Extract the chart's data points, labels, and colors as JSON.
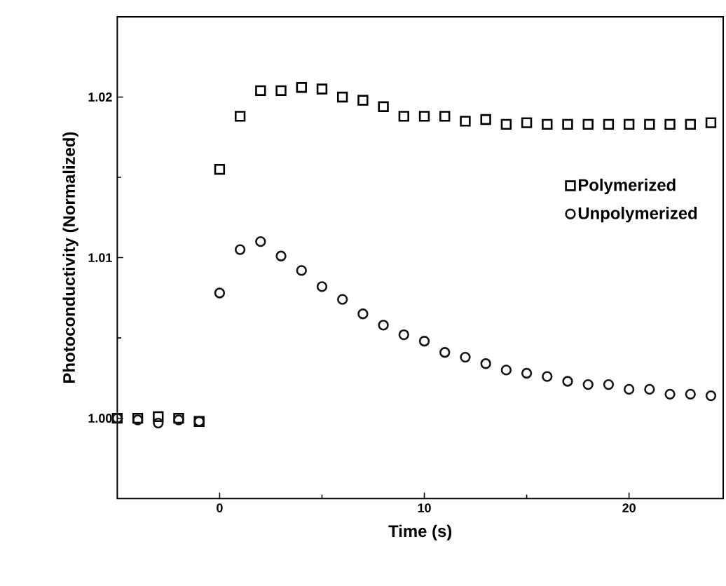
{
  "chart_data": {
    "type": "scatter",
    "xlabel": "Time (s)",
    "ylabel": "Photoconductivity (Normalized)",
    "xlim": [
      -5,
      24.6
    ],
    "ylim": [
      0.995,
      1.025
    ],
    "xticks": [
      0,
      10,
      20
    ],
    "yticks": [
      {
        "value": 1.0,
        "label": "1.00"
      },
      {
        "value": 1.01,
        "label": "1.01"
      },
      {
        "value": 1.02,
        "label": "1.02"
      }
    ],
    "legend": "right",
    "grid": false,
    "x": [
      -5,
      -4,
      -3,
      -2,
      -1,
      0,
      1,
      2,
      3,
      4,
      5,
      6,
      7,
      8,
      9,
      10,
      11,
      12,
      13,
      14,
      15,
      16,
      17,
      18,
      19,
      20,
      21,
      22,
      23,
      24
    ],
    "series": [
      {
        "name": "Polymerized",
        "color": "#000000",
        "marker": "square",
        "values": [
          1.0,
          1.0,
          1.0001,
          1.0,
          0.9998,
          1.0155,
          1.0188,
          1.0204,
          1.0204,
          1.0206,
          1.0205,
          1.02,
          1.0198,
          1.0194,
          1.0188,
          1.0188,
          1.0188,
          1.0185,
          1.0186,
          1.0183,
          1.0184,
          1.0183,
          1.0183,
          1.0183,
          1.0183,
          1.0183,
          1.0183,
          1.0183,
          1.0183,
          1.0184
        ]
      },
      {
        "name": "Unpolymerized",
        "color": "#141414",
        "marker": "circle",
        "values": [
          1.0,
          0.9999,
          0.9997,
          0.9999,
          0.9998,
          1.0078,
          1.0105,
          1.011,
          1.0101,
          1.0092,
          1.0082,
          1.0074,
          1.0065,
          1.0058,
          1.0052,
          1.0048,
          1.0041,
          1.0038,
          1.0034,
          1.003,
          1.0028,
          1.0026,
          1.0023,
          1.0021,
          1.0021,
          1.0018,
          1.0018,
          1.0015,
          1.0015,
          1.0014
        ]
      }
    ]
  }
}
